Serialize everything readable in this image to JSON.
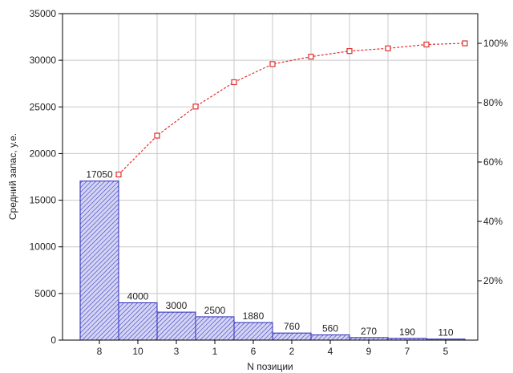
{
  "chart_data": {
    "type": "bar",
    "xlabel": "N позиции",
    "ylabel": "Средний запас, у.е.",
    "categories": [
      "8",
      "10",
      "3",
      "1",
      "6",
      "2",
      "4",
      "9",
      "7",
      "5"
    ],
    "values": [
      17050,
      4000,
      3000,
      2500,
      1880,
      760,
      560,
      270,
      190,
      110
    ],
    "value_labels": [
      "17050",
      "4000",
      "3000",
      "2500",
      "1880",
      "760",
      "560",
      "270",
      "190",
      "110"
    ],
    "ylim": [
      0,
      35000
    ],
    "yticks": [
      "0",
      "5000",
      "10000",
      "15000",
      "20000",
      "25000",
      "30000",
      "35000"
    ],
    "cumulative_percent": {
      "values": [
        55.8,
        68.9,
        78.7,
        86.9,
        93.0,
        95.5,
        97.4,
        98.3,
        99.6,
        100.0
      ],
      "ylim": [
        0,
        110
      ],
      "tick_values": [
        20,
        40,
        60,
        80,
        100
      ],
      "tick_labels": [
        "20%",
        "40%",
        "60%",
        "80%",
        "100%"
      ]
    },
    "grid": true,
    "colors": {
      "bar_stroke": "#2a2ab8",
      "bar_fill": "#c8c8f0",
      "line": "#e03030",
      "grid": "#c8c8c8",
      "axis": "#000000"
    }
  }
}
